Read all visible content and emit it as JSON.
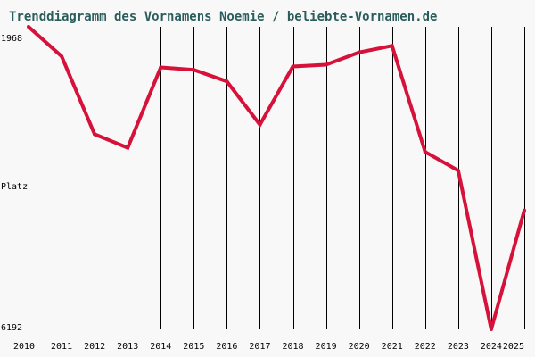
{
  "chart_data": {
    "type": "line",
    "title": "Trenddiagramm des Vornamens Noemie / beliebte-Vornamen.de",
    "ylabel": "Platz",
    "y_axis_inverted": true,
    "ylim": [
      1968,
      6192
    ],
    "ytick_labels": {
      "top": "1968",
      "bottom": "6192"
    },
    "x": [
      "2010",
      "2011",
      "2012",
      "2013",
      "2014",
      "2015",
      "2016",
      "2017",
      "2018",
      "2019",
      "2020",
      "2021",
      "2022",
      "2023",
      "2024",
      "2025"
    ],
    "series": [
      {
        "values": [
          1968,
          2381,
          3468,
          3657,
          2535,
          2568,
          2731,
          3335,
          2523,
          2497,
          2325,
          2233,
          3715,
          3975,
          6192,
          4530
        ]
      }
    ],
    "grid": "vertical lines at each year",
    "colors": {
      "line": "#d6123a",
      "grid": "#000000",
      "background": "#f8f8f8",
      "title": "#2a5c5c"
    }
  }
}
